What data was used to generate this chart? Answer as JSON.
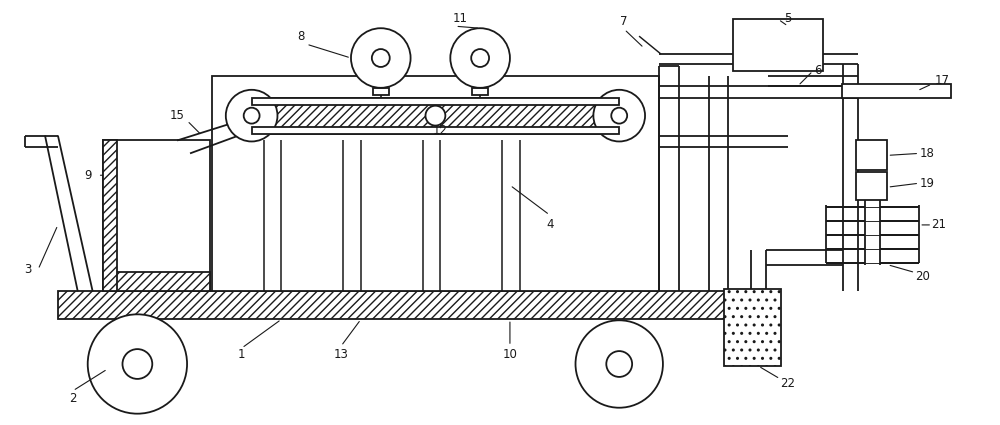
{
  "bg_color": "#ffffff",
  "line_color": "#1a1a1a",
  "lw": 1.3,
  "figsize": [
    10.0,
    4.25
  ],
  "dpi": 100
}
